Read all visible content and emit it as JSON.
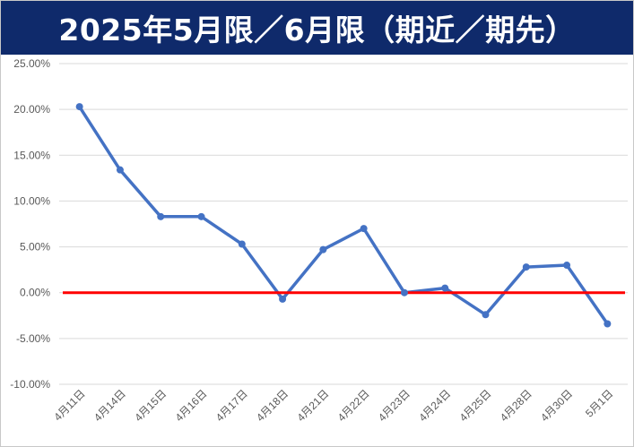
{
  "title": "2025年5月限／6月限（期近／期先）",
  "colors": {
    "title_background": "#0f2a6b",
    "series_line": "#4472c4",
    "zero_line": "#ff0000",
    "grid": "#d9d9d9"
  },
  "chart_data": {
    "type": "line",
    "title": "2025年5月限／6月限（期近／期先）",
    "xlabel": "",
    "ylabel": "",
    "ylim": [
      -10,
      25
    ],
    "y_tick_step": 5,
    "y_tick_labels": [
      "25.00%",
      "20.00%",
      "15.00%",
      "10.00%",
      "5.00%",
      "0.00%",
      "-5.00%",
      "-10.00%"
    ],
    "grid": true,
    "legend": "none",
    "categories": [
      "4月11日",
      "4月14日",
      "4月15日",
      "4月16日",
      "4月17日",
      "4月18日",
      "4月21日",
      "4月22日",
      "4月23日",
      "4月24日",
      "4月25日",
      "4月28日",
      "4月30日",
      "5月1日"
    ],
    "series": [
      {
        "values": [
          20.3,
          13.4,
          8.3,
          8.3,
          5.3,
          -0.7,
          4.7,
          7.0,
          0.0,
          0.5,
          -2.4,
          2.8,
          3.0,
          -3.4
        ]
      }
    ],
    "reference_line": {
      "y": 0
    }
  }
}
